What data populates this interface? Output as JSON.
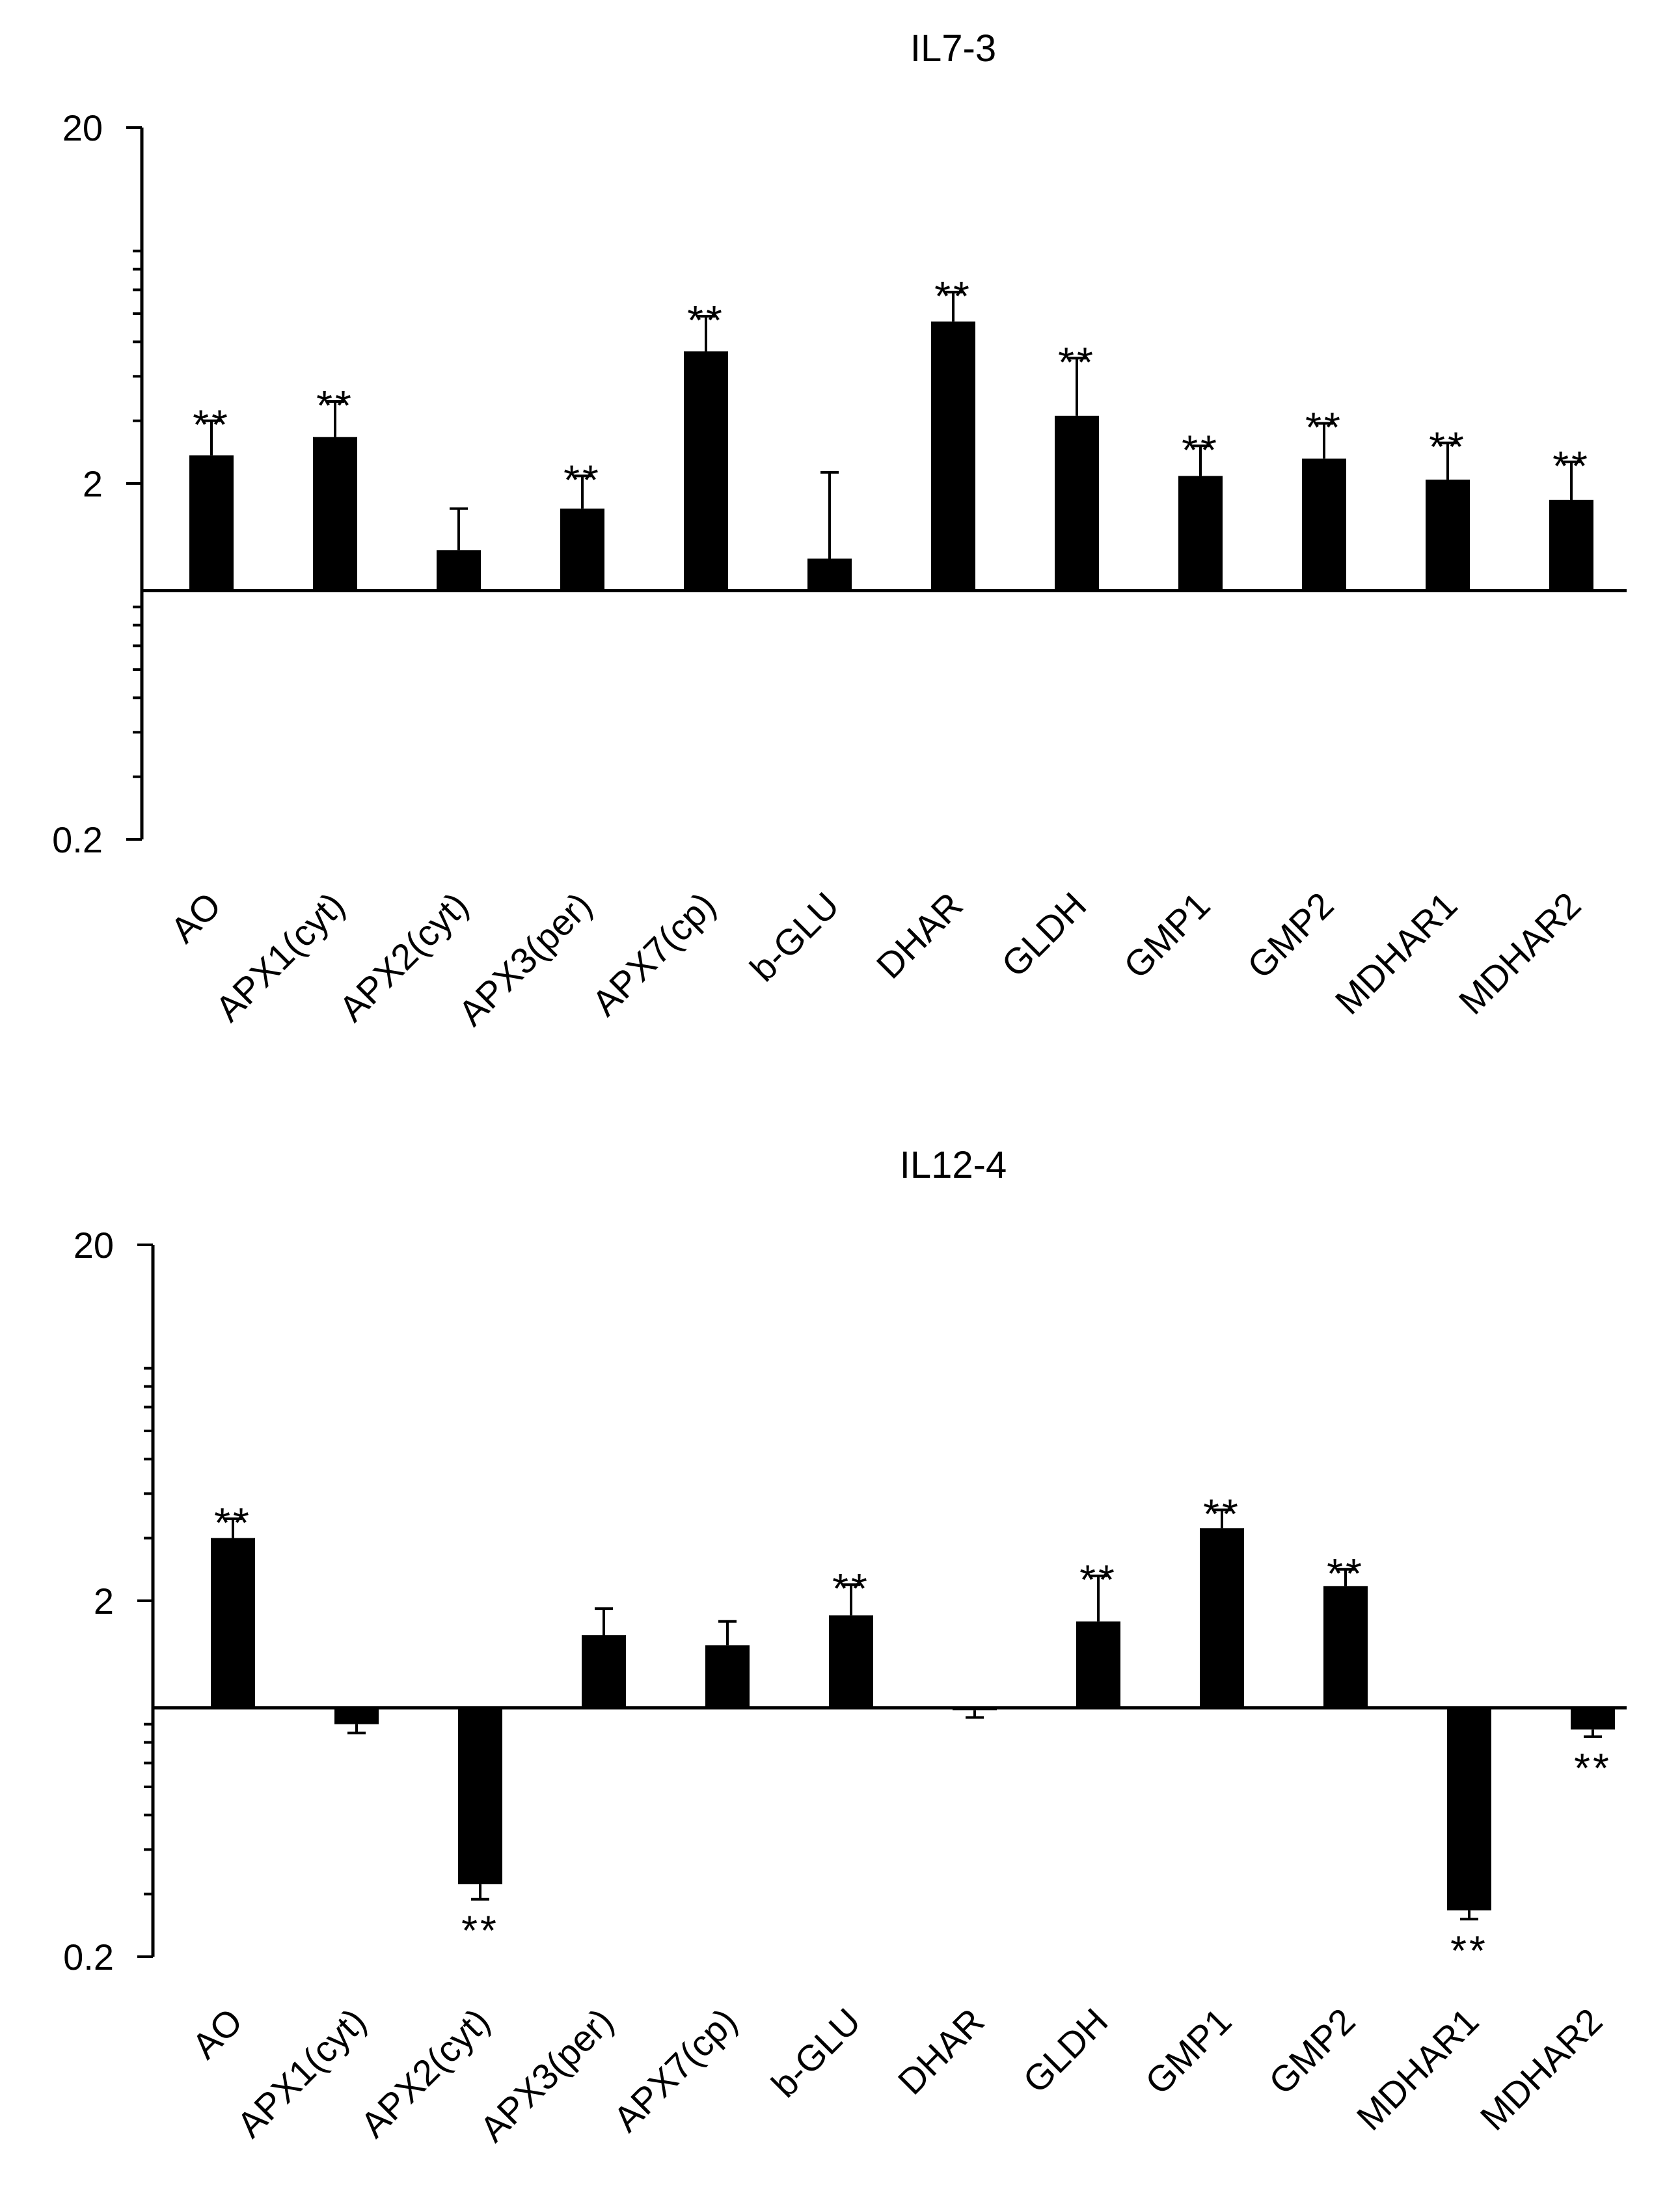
{
  "chart_data": [
    {
      "type": "bar",
      "title": "IL7-3",
      "scale": "log",
      "ylim": [
        0.2,
        20
      ],
      "baseline": 1,
      "yticks": [
        {
          "value": 20,
          "label": "20"
        },
        {
          "value": 2,
          "label": "2"
        },
        {
          "value": 0.2,
          "label": "0.2"
        }
      ],
      "xlabel": "",
      "ylabel": "",
      "categories": [
        "AO",
        "APX1(cyt)",
        "APX2(cyt)",
        "APX3(per)",
        "APX7(cp)",
        "b-GLU",
        "DHAR",
        "GLDH",
        "GMP1",
        "GMP2",
        "MDHAR1",
        "MDHAR2"
      ],
      "values": [
        2.4,
        2.7,
        1.3,
        1.7,
        4.7,
        1.23,
        5.7,
        3.1,
        2.1,
        2.35,
        2.05,
        1.8
      ],
      "errors_upper": [
        3.0,
        3.4,
        1.7,
        2.1,
        5.9,
        2.15,
        6.9,
        4.5,
        2.55,
        2.95,
        2.6,
        2.3
      ],
      "significance": [
        {
          "category": "AO",
          "label": "**",
          "position": "above"
        },
        {
          "category": "APX1(cyt)",
          "label": "**",
          "position": "above"
        },
        {
          "category": "APX3(per)",
          "label": "**",
          "position": "above"
        },
        {
          "category": "APX7(cp)",
          "label": "**",
          "position": "above"
        },
        {
          "category": "DHAR",
          "label": "**",
          "position": "above"
        },
        {
          "category": "GLDH",
          "label": "**",
          "position": "above"
        },
        {
          "category": "GMP1",
          "label": "**",
          "position": "above"
        },
        {
          "category": "GMP2",
          "label": "**",
          "position": "above"
        },
        {
          "category": "MDHAR1",
          "label": "**",
          "position": "above"
        },
        {
          "category": "MDHAR2",
          "label": "**",
          "position": "above"
        }
      ]
    },
    {
      "type": "bar",
      "title": "IL12-4",
      "scale": "log",
      "ylim": [
        0.2,
        20
      ],
      "baseline": 1,
      "yticks": [
        {
          "value": 20,
          "label": "20"
        },
        {
          "value": 2,
          "label": "2"
        },
        {
          "value": 0.2,
          "label": "0.2"
        }
      ],
      "xlabel": "",
      "ylabel": "",
      "categories": [
        "AO",
        "APX1(cyt)",
        "APX2(cyt)",
        "APX3(per)",
        "APX7(cp)",
        "b-GLU",
        "DHAR",
        "GLDH",
        "GMP1",
        "GMP2",
        "MDHAR1",
        "MDHAR2"
      ],
      "values": [
        3.0,
        0.9,
        0.32,
        1.6,
        1.5,
        1.82,
        0.985,
        1.75,
        3.2,
        2.2,
        0.27,
        0.87
      ],
      "errors_upper": [
        3.4,
        0.85,
        0.29,
        1.9,
        1.75,
        2.22,
        0.94,
        2.35,
        3.6,
        2.45,
        0.255,
        0.83
      ],
      "significance": [
        {
          "category": "AO",
          "label": "**",
          "position": "above"
        },
        {
          "category": "APX2(cyt)",
          "label": "**",
          "position": "below"
        },
        {
          "category": "b-GLU",
          "label": "**",
          "position": "above"
        },
        {
          "category": "GLDH",
          "label": "**",
          "position": "above"
        },
        {
          "category": "GMP1",
          "label": "**",
          "position": "above"
        },
        {
          "category": "GMP2",
          "label": "**",
          "position": "above"
        },
        {
          "category": "MDHAR1",
          "label": "**",
          "position": "below"
        },
        {
          "category": "MDHAR2",
          "label": "**",
          "position": "below"
        }
      ]
    }
  ]
}
